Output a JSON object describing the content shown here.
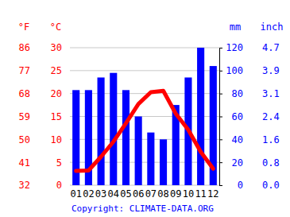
{
  "chart_data": {
    "type": "bar",
    "categories": [
      "01",
      "02",
      "03",
      "04",
      "05",
      "06",
      "07",
      "08",
      "09",
      "10",
      "11",
      "12"
    ],
    "series": [
      {
        "type": "bar",
        "color": "#0000ff",
        "axis": "y2",
        "values": [
          83,
          83,
          94,
          98,
          83,
          60,
          46,
          40,
          70,
          94,
          120,
          104
        ]
      },
      {
        "type": "line",
        "color": "#ff0000",
        "values": [
          3.1,
          3.2,
          6.2,
          9.5,
          13.5,
          17.7,
          20.3,
          20.6,
          15.6,
          12.1,
          7.3,
          3.6
        ]
      }
    ],
    "ylim": [
      0,
      30
    ],
    "yticks": [
      0,
      5,
      10,
      15,
      20,
      25,
      30
    ],
    "y_label": "°C",
    "y_alt_label": "°F",
    "y_alt_ticks": [
      {
        "value": 0,
        "label": "32"
      },
      {
        "value": 5,
        "label": "41"
      },
      {
        "value": 10,
        "label": "50"
      },
      {
        "value": 15,
        "label": "59"
      },
      {
        "value": 20,
        "label": "68"
      },
      {
        "value": 25,
        "label": "77"
      },
      {
        "value": 30,
        "label": "86"
      }
    ],
    "y2lim": [
      0,
      120
    ],
    "y2ticks": [
      0,
      20,
      40,
      60,
      80,
      100,
      120
    ],
    "y2_label": "mm",
    "y2_alt_label": "inch",
    "y2_alt_ticks": [
      {
        "value": 0,
        "label": "0.0"
      },
      {
        "value": 20,
        "label": "0.8"
      },
      {
        "value": 40,
        "label": "1.6"
      },
      {
        "value": 60,
        "label": "2.4"
      },
      {
        "value": 80,
        "label": "3.1"
      },
      {
        "value": 100,
        "label": "3.9"
      },
      {
        "value": 120,
        "label": "4.7"
      }
    ],
    "source": "Copyright: CLIMATE-DATA.ORG",
    "grid": true
  }
}
